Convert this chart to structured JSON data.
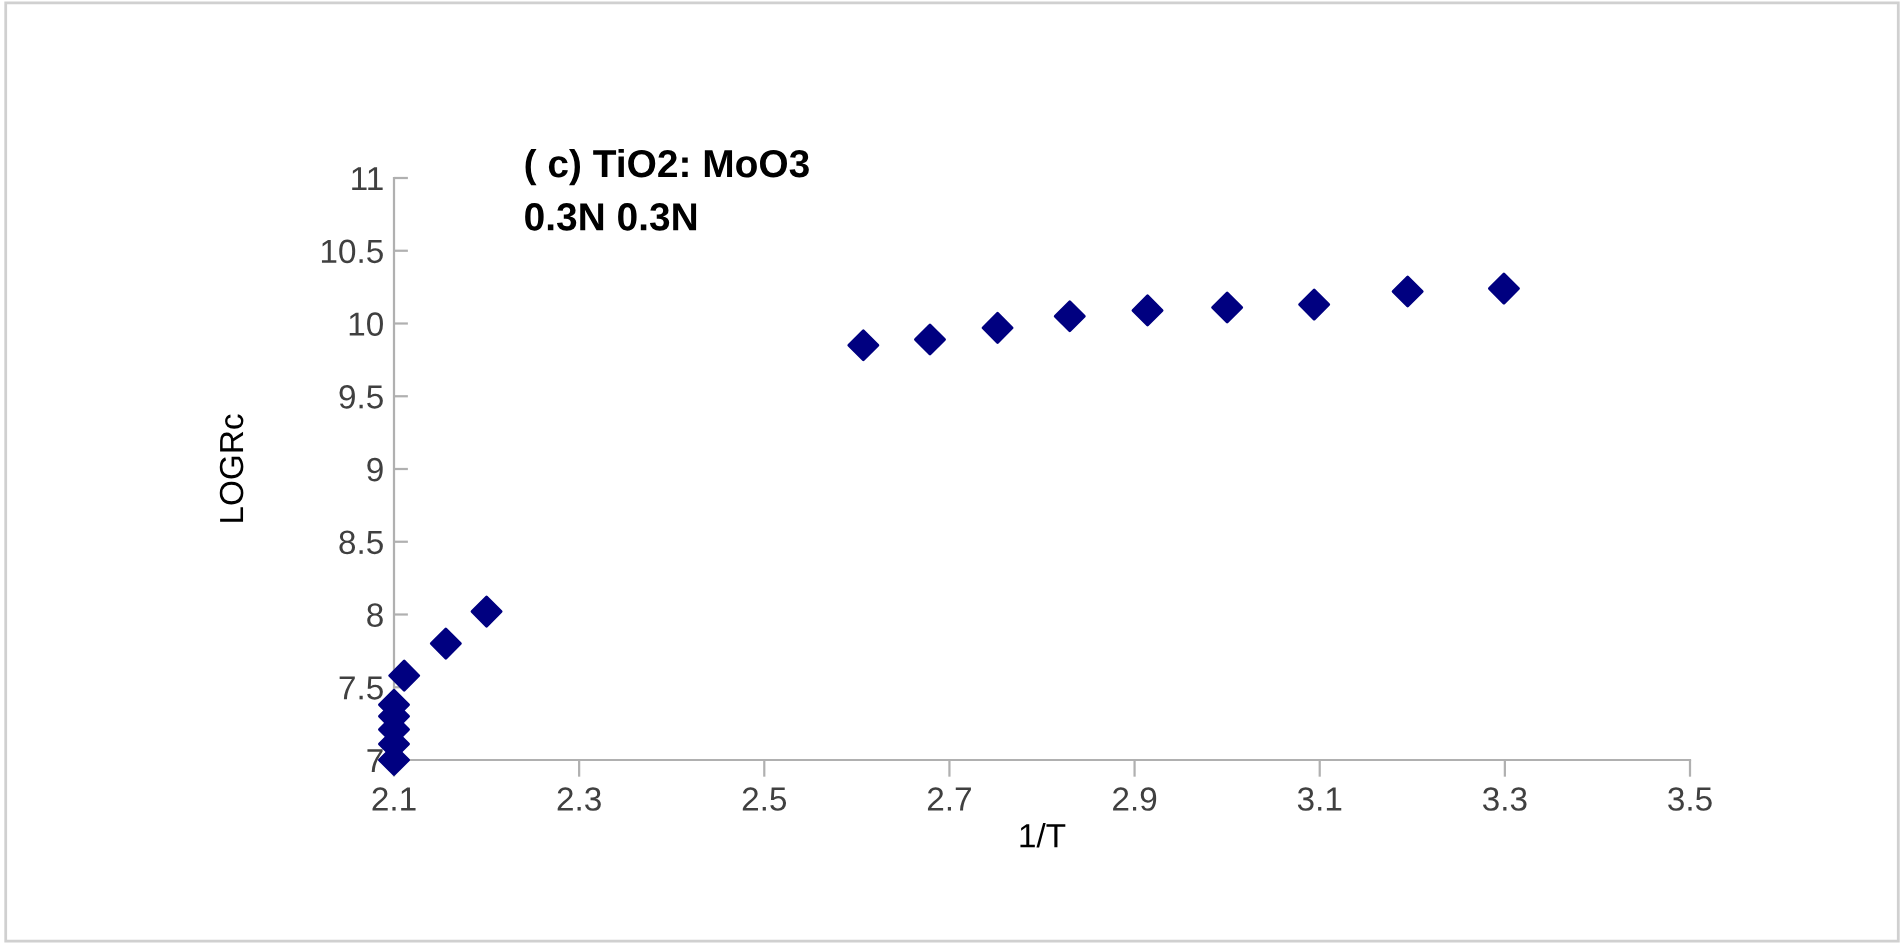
{
  "chart_data": {
    "type": "scatter",
    "title": "( c) TiO2: MoO3\n0.3N 0.3N",
    "xlabel": "1/T",
    "ylabel": "LOGRc",
    "x": [
      2.1,
      2.1,
      2.1,
      2.1,
      2.1,
      2.111,
      2.156,
      2.2,
      2.607,
      2.679,
      2.752,
      2.83,
      2.914,
      3.0,
      3.094,
      3.195,
      3.299
    ],
    "values": [
      7.0,
      7.11,
      7.21,
      7.3,
      7.38,
      7.58,
      7.8,
      8.02,
      9.85,
      9.89,
      9.97,
      10.05,
      10.09,
      10.11,
      10.13,
      10.22,
      10.24
    ],
    "color": "#000080",
    "marker": "diamond",
    "xlim": [
      2.1,
      3.5
    ],
    "xticks": [
      2.1,
      2.3,
      2.5,
      2.7,
      2.9,
      3.1,
      3.3,
      3.5
    ],
    "ylim": [
      7,
      11
    ],
    "yticks": [
      7,
      7.5,
      8,
      8.5,
      9,
      9.5,
      10,
      10.5,
      11
    ],
    "grid": false,
    "legend": false
  }
}
